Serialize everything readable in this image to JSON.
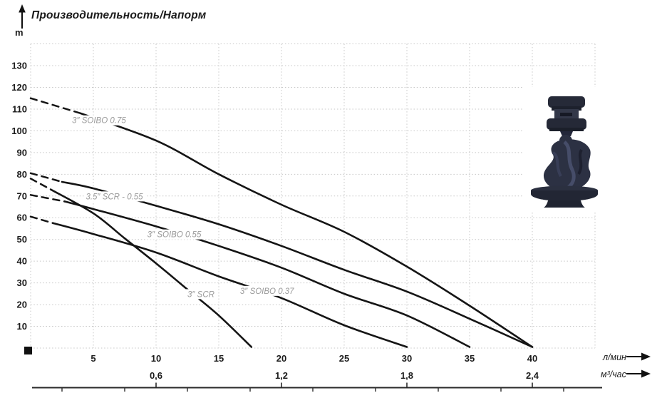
{
  "header": {
    "title": "Производительность/Напорм",
    "y_unit": "m"
  },
  "chart_data": {
    "type": "line",
    "title": "Производительность/Напорм",
    "ylabel": "m",
    "xlabel": "л/мин (primary) / м³/час (secondary)",
    "xlim": [
      0,
      45
    ],
    "ylim": [
      0,
      140
    ],
    "grid": {
      "x_step_lmin": 5,
      "y_step_m": 10,
      "style": "dotted"
    },
    "legend_position": "labels-on-curves",
    "y_axis": {
      "unit": "m",
      "ticks": [
        10,
        20,
        30,
        40,
        50,
        60,
        70,
        80,
        90,
        100,
        110,
        120,
        130
      ]
    },
    "x_axis": {
      "primary": {
        "unit": "л/мин",
        "ticks": [
          5,
          10,
          15,
          20,
          25,
          30,
          35,
          40
        ]
      },
      "secondary": {
        "unit": "м³/час",
        "ticks": [
          {
            "label": "0,6",
            "at_lmin": 10
          },
          {
            "label": "1,2",
            "at_lmin": 20
          },
          {
            "label": "1,8",
            "at_lmin": 30
          },
          {
            "label": "2,4",
            "at_lmin": 40
          }
        ]
      }
    },
    "series": [
      {
        "name": "3″ SOIBO 0.75",
        "dashed_points": [
          [
            0,
            115
          ],
          [
            4,
            108
          ]
        ],
        "points": [
          [
            4,
            108
          ],
          [
            10,
            95.5
          ],
          [
            15,
            80
          ],
          [
            20,
            66
          ],
          [
            25,
            53.5
          ],
          [
            30,
            37.5
          ],
          [
            35,
            19.5
          ],
          [
            40,
            0.5
          ]
        ],
        "label_at": [
          3.3,
          103.5
        ]
      },
      {
        "name": "3″ SCR",
        "dashed_points": [
          [
            0,
            78
          ],
          [
            1.6,
            73
          ]
        ],
        "points": [
          [
            1.6,
            73
          ],
          [
            5,
            62
          ],
          [
            7.5,
            50.5
          ],
          [
            10,
            39
          ],
          [
            12.5,
            27
          ],
          [
            15,
            15
          ],
          [
            17.6,
            0.5
          ]
        ],
        "label_at": [
          12.5,
          23.5
        ]
      },
      {
        "name": "3.5″ SCR - 0.55",
        "dashed_points": [
          [
            0,
            80.5
          ],
          [
            2.5,
            76.5
          ]
        ],
        "points": [
          [
            2.5,
            76.5
          ],
          [
            5,
            73.5
          ],
          [
            10,
            65.5
          ],
          [
            15,
            57
          ],
          [
            20,
            47
          ],
          [
            25,
            36
          ],
          [
            30,
            26
          ],
          [
            35,
            13.5
          ],
          [
            40,
            0.5
          ]
        ],
        "label_at": [
          4.4,
          68.5
        ]
      },
      {
        "name": "3″ SOIBO 0.55",
        "dashed_points": [
          [
            0,
            70.5
          ],
          [
            2.7,
            67.5
          ]
        ],
        "points": [
          [
            2.7,
            67.5
          ],
          [
            5,
            64
          ],
          [
            10,
            56
          ],
          [
            15,
            47
          ],
          [
            20,
            37
          ],
          [
            25,
            25
          ],
          [
            30,
            15
          ],
          [
            35,
            0.5
          ]
        ],
        "label_at": [
          9.3,
          51
        ]
      },
      {
        "name": "3″ SOIBO 0.37",
        "dashed_points": [
          [
            0,
            60.5
          ],
          [
            1.8,
            57.5
          ]
        ],
        "points": [
          [
            1.8,
            57.5
          ],
          [
            5,
            52.5
          ],
          [
            10,
            44
          ],
          [
            15,
            33
          ],
          [
            20,
            23
          ],
          [
            25,
            10.5
          ],
          [
            30,
            0.5
          ]
        ],
        "label_at": [
          16.7,
          25
        ]
      }
    ]
  },
  "colors": {
    "curve": "#151515",
    "grid": "#c7c7c7",
    "series_label": "#9a9a9a",
    "text": "#1c1c1c",
    "pump_body": "#2c3143"
  }
}
